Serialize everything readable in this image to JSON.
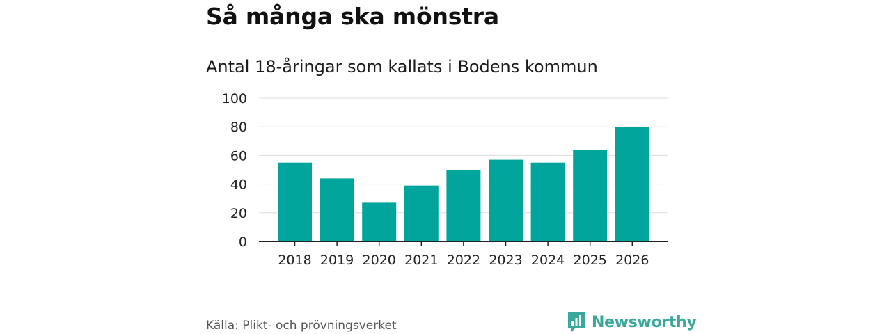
{
  "header": {
    "title": "Så många ska mönstra",
    "subtitle": "Antal 18-åringar som kallats i Bodens kommun"
  },
  "footer": {
    "source": "Källa: Plikt- och prövningsverket",
    "brand": "Newsworthy"
  },
  "colors": {
    "bar": "#02a59b",
    "grid": "#dddddd",
    "axis": "#222222",
    "brand": "#3aa89a"
  },
  "chart_data": {
    "type": "bar",
    "title": "Så många ska mönstra",
    "subtitle": "Antal 18-åringar som kallats i Bodens kommun",
    "categories": [
      "2018",
      "2019",
      "2020",
      "2021",
      "2022",
      "2023",
      "2024",
      "2025",
      "2026"
    ],
    "values": [
      55,
      44,
      27,
      39,
      50,
      57,
      55,
      64,
      80
    ],
    "xlabel": "",
    "ylabel": "",
    "ylim": [
      0,
      100
    ],
    "yticks": [
      0,
      20,
      40,
      60,
      80,
      100
    ],
    "grid": true
  }
}
